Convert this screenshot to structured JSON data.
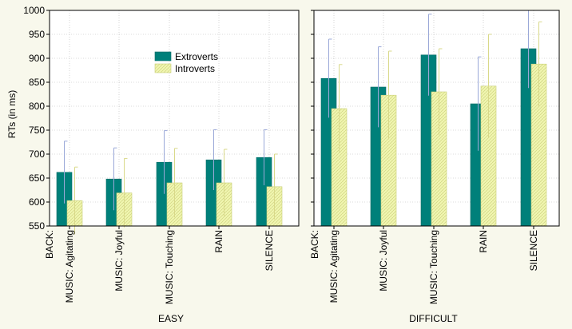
{
  "chart_data": {
    "type": "bar",
    "ylabel": "RTs (in ms)",
    "ylim": [
      550,
      1000
    ],
    "yticks": [
      550,
      600,
      650,
      700,
      750,
      800,
      850,
      900,
      950,
      1000
    ],
    "grid": true,
    "legend_position": "top-center-of-left-panel",
    "x_prefix": "BACK:",
    "categories": [
      "MUSIC: Agitating",
      "MUSIC: Joyful",
      "MUSIC: Touching",
      "RAIN",
      "SILENCE"
    ],
    "series_styles": [
      {
        "name": "Extroverts",
        "color": "#00807a"
      },
      {
        "name": "Introverts",
        "color": "#f0f5b0"
      }
    ],
    "error_bar_color": "#9aa8d8",
    "panels": [
      {
        "title": "EASY",
        "series": [
          {
            "name": "Extroverts",
            "values": [
              662,
              648,
              683,
              688,
              693
            ],
            "errors": [
              65,
              65,
              66,
              63,
              58
            ]
          },
          {
            "name": "Introverts",
            "values": [
              603,
              619,
              640,
              640,
              632
            ],
            "errors": [
              70,
              72,
              72,
              70,
              68
            ]
          }
        ]
      },
      {
        "title": "DIFFICULT",
        "series": [
          {
            "name": "Extroverts",
            "values": [
              858,
              840,
              907,
              805,
              920
            ],
            "errors": [
              82,
              84,
              85,
              98,
              82
            ]
          },
          {
            "name": "Introverts",
            "values": [
              795,
              823,
              830,
              842,
              888
            ],
            "errors": [
              92,
              92,
              90,
              108,
              88
            ]
          }
        ]
      }
    ]
  }
}
